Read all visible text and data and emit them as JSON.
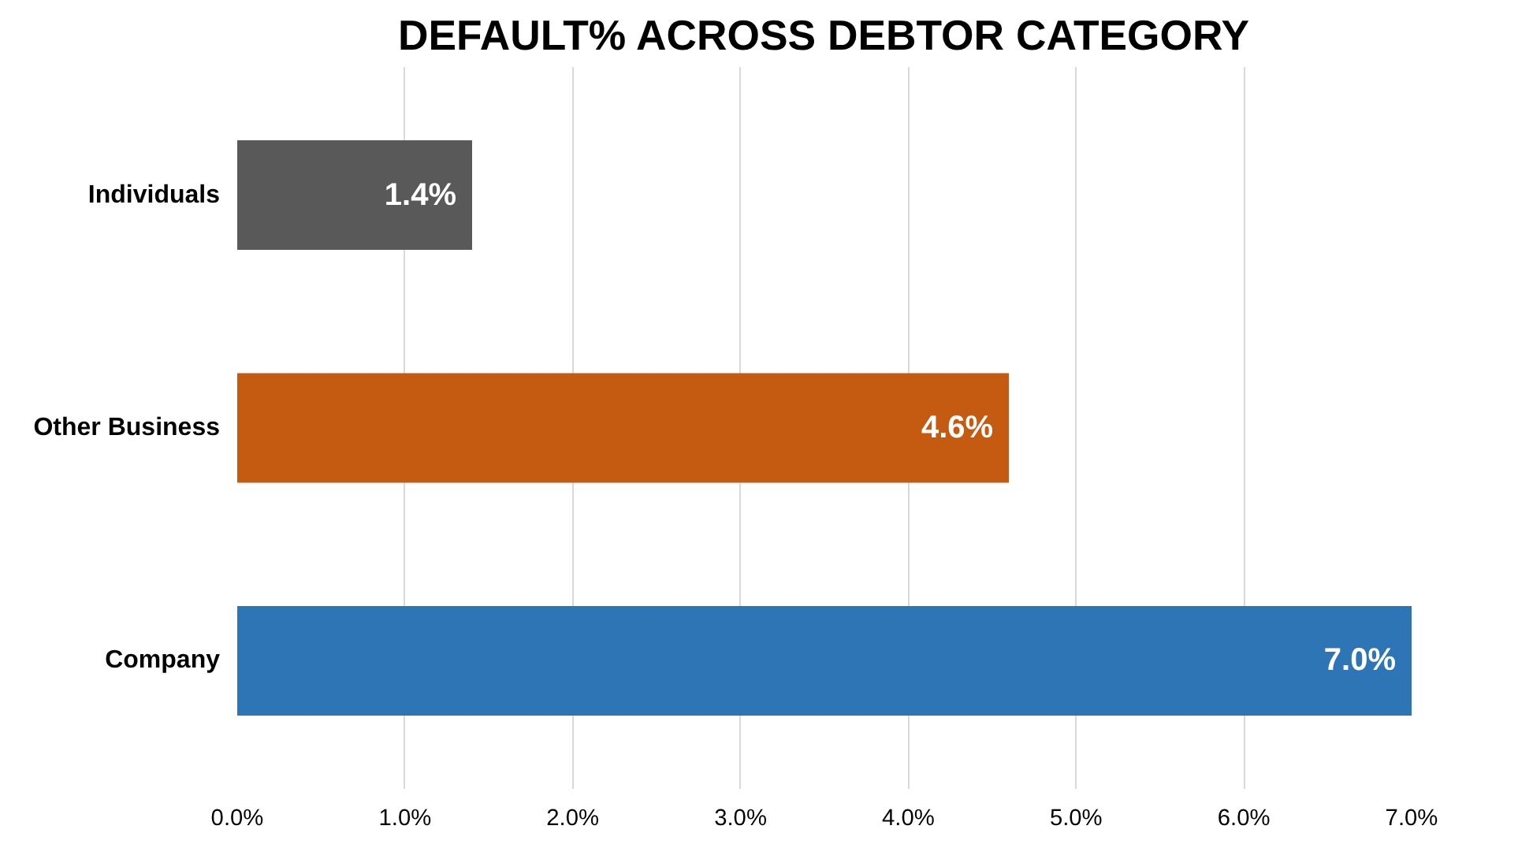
{
  "chart_data": {
    "type": "bar",
    "orientation": "horizontal",
    "title": "DEFAULT% ACROSS DEBTOR CATEGORY",
    "categories": [
      "Individuals",
      "Other Business",
      "Company"
    ],
    "values": [
      1.4,
      4.6,
      7.0
    ],
    "colors": [
      "#595959",
      "#c55a11",
      "#2e75b6"
    ],
    "value_labels": [
      "1.4%",
      "4.6%",
      "7.0%"
    ],
    "xlim": [
      0,
      7
    ],
    "xticks": [
      {
        "value": 0,
        "label": "0.0%"
      },
      {
        "value": 1,
        "label": "1.0%"
      },
      {
        "value": 2,
        "label": "2.0%"
      },
      {
        "value": 3,
        "label": "3.0%"
      },
      {
        "value": 4,
        "label": "4.0%"
      },
      {
        "value": 5,
        "label": "5.0%"
      },
      {
        "value": 6,
        "label": "6.0%"
      },
      {
        "value": 7,
        "label": "7.0%"
      }
    ],
    "grid": "x"
  }
}
